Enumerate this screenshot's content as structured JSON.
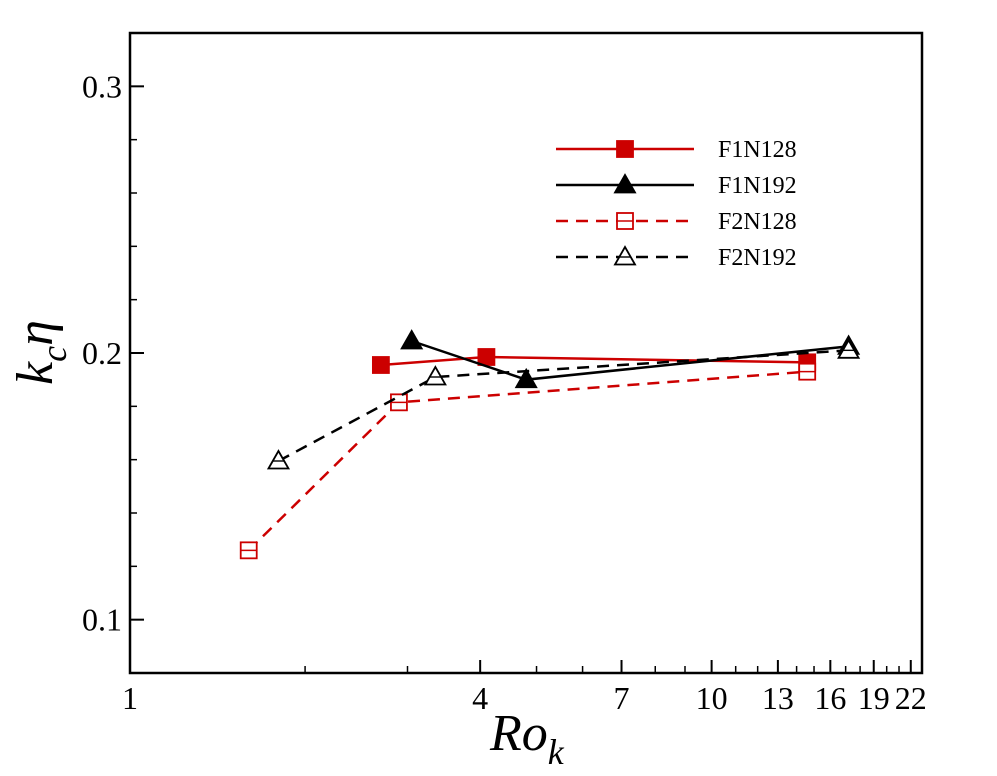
{
  "chart_data": {
    "type": "line",
    "title": "",
    "xlabel": {
      "main": "Ro",
      "sub": "k"
    },
    "ylabel": {
      "main": "k",
      "sub": "c",
      "suffix": "η"
    },
    "xscale": "log",
    "xlim": [
      1,
      23
    ],
    "ylim": [
      0.08,
      0.32
    ],
    "xticks": [
      {
        "value": 1,
        "label": "1"
      },
      {
        "value": 4,
        "label": "4"
      },
      {
        "value": 7,
        "label": "7"
      },
      {
        "value": 10,
        "label": "10"
      },
      {
        "value": 13,
        "label": "13"
      },
      {
        "value": 16,
        "label": "16"
      },
      {
        "value": 19,
        "label": "19"
      },
      {
        "value": 22,
        "label": "22"
      }
    ],
    "xminor": [
      2,
      3,
      5,
      6,
      8,
      9,
      11,
      12,
      14,
      15,
      17,
      18,
      20,
      21
    ],
    "yticks": [
      {
        "value": 0.1,
        "label": "0.1"
      },
      {
        "value": 0.2,
        "label": "0.2"
      },
      {
        "value": 0.3,
        "label": "0.3"
      }
    ],
    "yminor": [
      0.12,
      0.14,
      0.16,
      0.18,
      0.22,
      0.24,
      0.26,
      0.28
    ],
    "legend_position": "top-right",
    "series": [
      {
        "name": "F1N128",
        "color": "#cc0000",
        "dash": "solid",
        "marker": "square-filled",
        "x": [
          2.7,
          4.1,
          14.6
        ],
        "y": [
          0.1955,
          0.1985,
          0.1965
        ]
      },
      {
        "name": "F1N192",
        "color": "#000000",
        "dash": "solid",
        "marker": "triangle-filled",
        "x": [
          3.05,
          4.8,
          17.2
        ],
        "y": [
          0.2045,
          0.19,
          0.2025
        ]
      },
      {
        "name": "F2N128",
        "color": "#cc0000",
        "dash": "dashed",
        "marker": "square-open",
        "x": [
          1.6,
          2.9,
          14.6
        ],
        "y": [
          0.126,
          0.1815,
          0.193
        ]
      },
      {
        "name": "F2N192",
        "color": "#000000",
        "dash": "dashed",
        "marker": "triangle-open",
        "x": [
          1.8,
          3.35,
          17.2
        ],
        "y": [
          0.1595,
          0.191,
          0.201
        ]
      }
    ]
  }
}
